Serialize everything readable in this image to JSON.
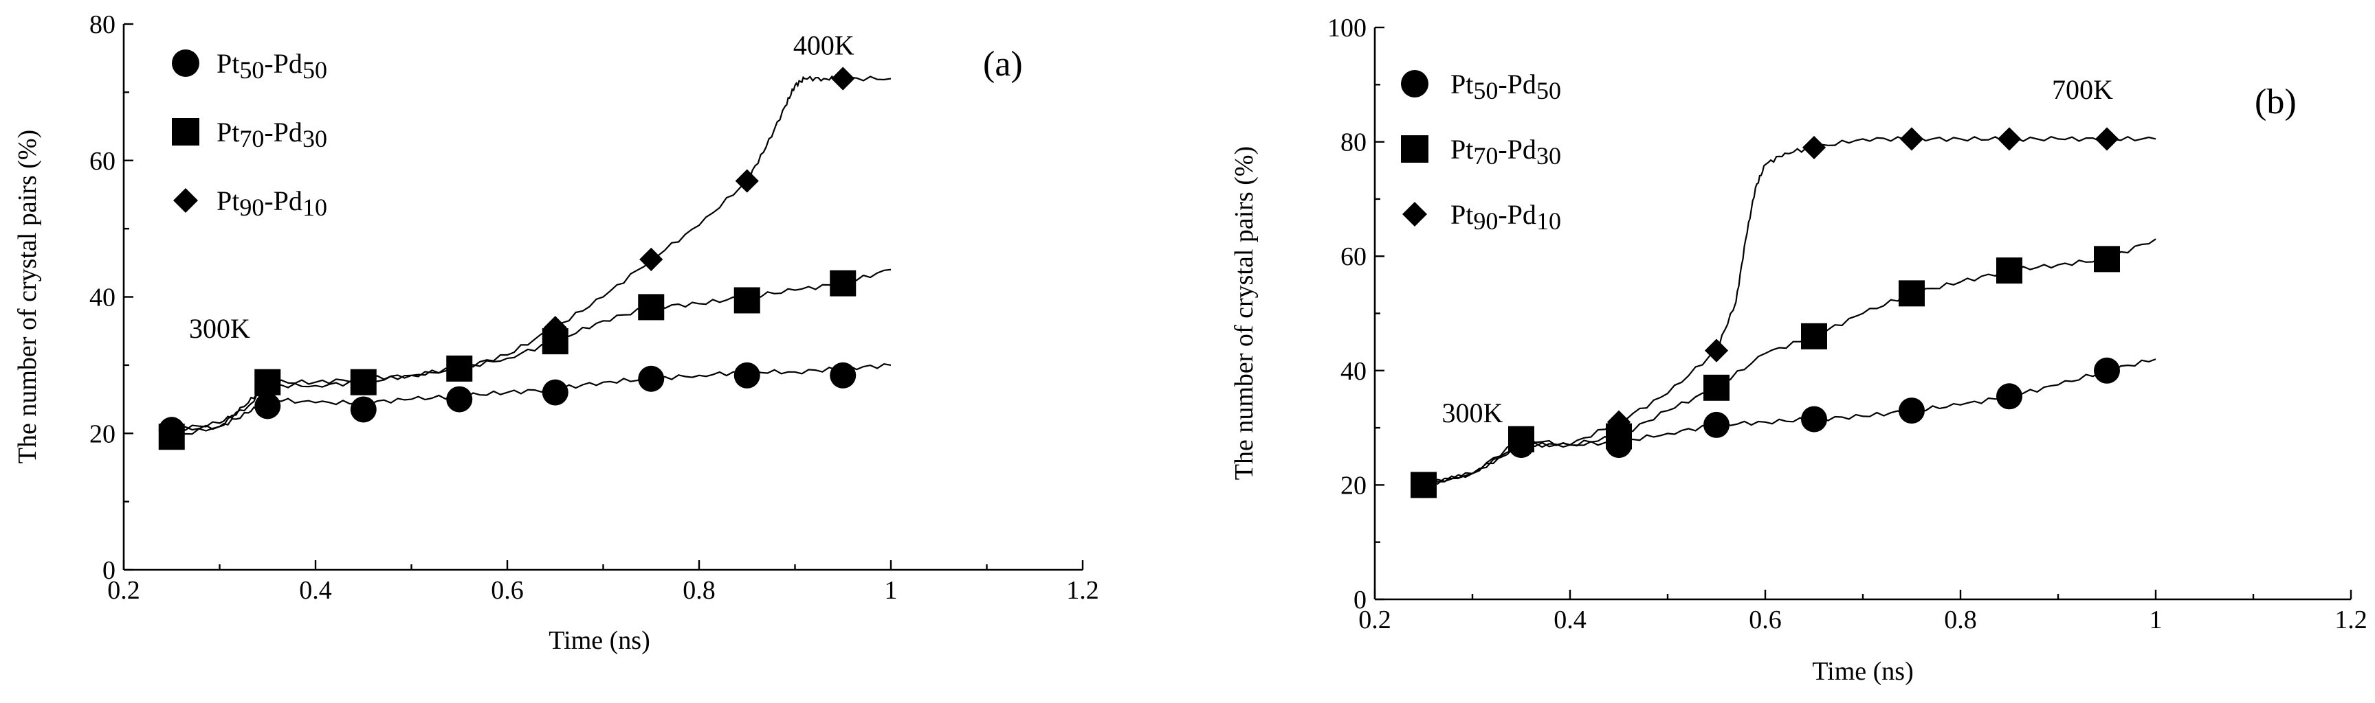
{
  "chart_data": [
    {
      "type": "line",
      "panel_label": "(a)",
      "xlabel": "Time (ns)",
      "ylabel": "The number of crystal pairs (%)",
      "xlim": [
        0.2,
        1.2
      ],
      "ylim": [
        0,
        80
      ],
      "x_ticks": [
        0.2,
        0.4,
        0.6,
        0.8,
        1,
        1.2
      ],
      "x_tick_labels": [
        "0.2",
        "0.4",
        "0.6",
        "0.8",
        "1",
        "1.2"
      ],
      "y_ticks": [
        0,
        20,
        40,
        60,
        80
      ],
      "y_tick_labels": [
        "0",
        "20",
        "40",
        "60",
        "80"
      ],
      "annotations": [
        {
          "text": "300K",
          "x": 0.3,
          "y": 34
        },
        {
          "text": "400K",
          "x": 0.93,
          "y": 75.5
        }
      ],
      "legend": {
        "position": "top-left",
        "labels": [
          "Pt50-Pd50",
          "Pt70-Pd30",
          "Pt90-Pd10"
        ]
      },
      "series": [
        {
          "name": "Pt50-Pd50",
          "marker": "circle",
          "marker_x": [
            0.25,
            0.35,
            0.45,
            0.55,
            0.65,
            0.75,
            0.85,
            0.95
          ],
          "marker_y": [
            20.5,
            24,
            23.5,
            25,
            26,
            28,
            28.5,
            28.5
          ],
          "line_x": [
            0.25,
            0.3,
            0.33,
            0.35,
            0.4,
            0.45,
            0.5,
            0.55,
            0.6,
            0.65,
            0.7,
            0.75,
            0.8,
            0.85,
            0.9,
            0.95,
            1.0
          ],
          "line_y": [
            20.5,
            21,
            23,
            25,
            24.5,
            24.5,
            25,
            25.5,
            26,
            26.5,
            27.5,
            28,
            28.5,
            29,
            29,
            29.5,
            30
          ]
        },
        {
          "name": "Pt70-Pd30",
          "marker": "square",
          "marker_x": [
            0.25,
            0.35,
            0.45,
            0.55,
            0.65,
            0.75,
            0.85,
            0.95
          ],
          "marker_y": [
            19.5,
            27.5,
            27.5,
            29.5,
            33.5,
            38.5,
            39.5,
            42
          ],
          "line_x": [
            0.25,
            0.3,
            0.33,
            0.35,
            0.4,
            0.45,
            0.5,
            0.55,
            0.6,
            0.65,
            0.7,
            0.75,
            0.8,
            0.85,
            0.9,
            0.95,
            1.0
          ],
          "line_y": [
            19.5,
            21,
            24.5,
            27.5,
            27.5,
            28,
            28.5,
            29.5,
            31,
            33.5,
            36.5,
            38.5,
            39,
            40,
            41,
            42,
            44
          ]
        },
        {
          "name": "Pt90-Pd10",
          "marker": "diamond",
          "marker_x": [
            0.35,
            0.65,
            0.75,
            0.85,
            0.95
          ],
          "marker_y": [
            26.5,
            35.5,
            45.5,
            57,
            72
          ],
          "line_x": [
            0.25,
            0.3,
            0.33,
            0.35,
            0.4,
            0.45,
            0.5,
            0.55,
            0.6,
            0.65,
            0.7,
            0.75,
            0.8,
            0.85,
            0.87,
            0.89,
            0.9,
            0.91,
            0.93,
            0.95,
            1.0
          ],
          "line_y": [
            20.5,
            21.5,
            24,
            27,
            27,
            27.5,
            28.5,
            29.5,
            31.5,
            35.5,
            40,
            45.5,
            50.5,
            57,
            62,
            68,
            71,
            72,
            72,
            72,
            72
          ]
        }
      ]
    },
    {
      "type": "line",
      "panel_label": "(b)",
      "xlabel": "Time (ns)",
      "ylabel": "The number of crystal pairs (%)",
      "xlim": [
        0.2,
        1.2
      ],
      "ylim": [
        0,
        100
      ],
      "x_ticks": [
        0.2,
        0.4,
        0.6,
        0.8,
        1,
        1.2
      ],
      "x_tick_labels": [
        "0.2",
        "0.4",
        "0.6",
        "0.8",
        "1",
        "1.2"
      ],
      "y_ticks": [
        0,
        20,
        40,
        60,
        80,
        100
      ],
      "y_tick_labels": [
        "0",
        "20",
        "40",
        "60",
        "80",
        "100"
      ],
      "annotations": [
        {
          "text": "300K",
          "x": 0.3,
          "y": 31
        },
        {
          "text": "700K",
          "x": 0.925,
          "y": 87.5
        }
      ],
      "legend": {
        "position": "top-left",
        "labels": [
          "Pt50-Pd50",
          "Pt70-Pd30",
          "Pt90-Pd10"
        ]
      },
      "series": [
        {
          "name": "Pt50-Pd50",
          "marker": "circle",
          "marker_x": [
            0.25,
            0.35,
            0.45,
            0.55,
            0.65,
            0.75,
            0.85,
            0.95
          ],
          "marker_y": [
            20,
            27,
            27,
            30.5,
            31.5,
            33,
            35.5,
            40
          ],
          "line_x": [
            0.25,
            0.3,
            0.35,
            0.4,
            0.45,
            0.5,
            0.55,
            0.6,
            0.65,
            0.7,
            0.75,
            0.8,
            0.85,
            0.9,
            0.95,
            1.0
          ],
          "line_y": [
            20,
            22,
            27,
            27,
            27.5,
            29,
            30.5,
            31,
            31.5,
            32,
            33,
            34,
            35.5,
            37.5,
            40,
            42
          ]
        },
        {
          "name": "Pt70-Pd30",
          "marker": "square",
          "marker_x": [
            0.25,
            0.35,
            0.45,
            0.55,
            0.65,
            0.75,
            0.85,
            0.95
          ],
          "marker_y": [
            20,
            28,
            28.5,
            37,
            46,
            53.5,
            57.5,
            59.5
          ],
          "line_x": [
            0.25,
            0.3,
            0.35,
            0.4,
            0.45,
            0.5,
            0.55,
            0.6,
            0.65,
            0.7,
            0.75,
            0.8,
            0.85,
            0.9,
            0.95,
            1.0
          ],
          "line_y": [
            20,
            22,
            28,
            27,
            28.5,
            33,
            37,
            43,
            46,
            50,
            53.5,
            55.5,
            57.5,
            58.5,
            59.5,
            63
          ]
        },
        {
          "name": "Pt90-Pd10",
          "marker": "diamond",
          "marker_x": [
            0.45,
            0.55,
            0.65,
            0.75,
            0.85,
            0.95
          ],
          "marker_y": [
            31,
            43.5,
            79,
            80.5,
            80.5,
            80.5
          ],
          "line_x": [
            0.25,
            0.3,
            0.35,
            0.4,
            0.45,
            0.5,
            0.55,
            0.57,
            0.58,
            0.59,
            0.6,
            0.62,
            0.65,
            0.7,
            0.75,
            0.8,
            0.85,
            0.9,
            0.95,
            1.0
          ],
          "line_y": [
            20,
            22,
            27,
            27,
            31,
            36,
            43.5,
            52,
            63,
            72,
            76,
            78,
            79,
            80.5,
            80.5,
            80.5,
            80.5,
            80.5,
            80.5,
            80.5
          ]
        }
      ]
    }
  ]
}
